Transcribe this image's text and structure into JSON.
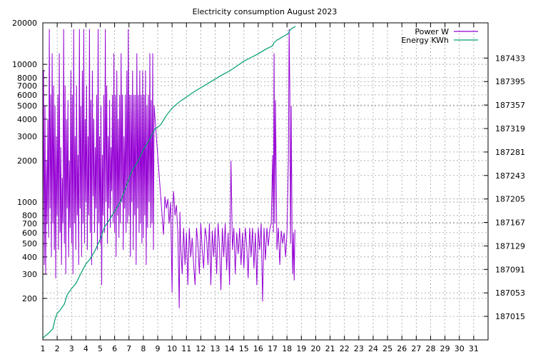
{
  "chart_data": {
    "type": "line",
    "title": "Electricity consumption August 2023",
    "xlabel": "",
    "ylabel": "",
    "y2label": "",
    "grid": true,
    "legend_position": "top-right",
    "x_range": [
      1,
      32
    ],
    "x_ticks": [
      1,
      2,
      3,
      4,
      5,
      6,
      7,
      8,
      9,
      10,
      11,
      12,
      13,
      14,
      15,
      16,
      17,
      18,
      19,
      20,
      21,
      22,
      23,
      24,
      25,
      26,
      27,
      28,
      29,
      30,
      31
    ],
    "y_scale": "log",
    "y_range": [
      100,
      20000
    ],
    "y_ticks": [
      200,
      300,
      400,
      500,
      600,
      700,
      800,
      1000,
      2000,
      3000,
      4000,
      5000,
      6000,
      7000,
      8000,
      10000,
      20000
    ],
    "y2_range": [
      186977,
      187490
    ],
    "y2_ticks": [
      187015,
      187053,
      187091,
      187129,
      187167,
      187205,
      187243,
      187281,
      187319,
      187357,
      187395,
      187433
    ],
    "series": [
      {
        "name": "Power W",
        "axis": "y",
        "color": "#9400d3",
        "style": "impulse",
        "points": [
          [
            1.0,
            600
          ],
          [
            1.05,
            9000
          ],
          [
            1.1,
            350
          ],
          [
            1.15,
            5000
          ],
          [
            1.2,
            300
          ],
          [
            1.25,
            2000
          ],
          [
            1.3,
            700
          ],
          [
            1.35,
            4000
          ],
          [
            1.4,
            550
          ],
          [
            1.45,
            18000
          ],
          [
            1.5,
            900
          ],
          [
            1.55,
            6000
          ],
          [
            1.6,
            400
          ],
          [
            1.65,
            12000
          ],
          [
            1.7,
            700
          ],
          [
            1.75,
            7000
          ],
          [
            1.8,
            450
          ],
          [
            1.85,
            5000
          ],
          [
            1.9,
            280
          ],
          [
            1.95,
            3000
          ],
          [
            2.0,
            800
          ],
          [
            2.05,
            6000
          ],
          [
            2.1,
            450
          ],
          [
            2.15,
            12000
          ],
          [
            2.2,
            600
          ],
          [
            2.25,
            2500
          ],
          [
            2.3,
            350
          ],
          [
            2.35,
            1500
          ],
          [
            2.4,
            700
          ],
          [
            2.45,
            18000
          ],
          [
            2.5,
            500
          ],
          [
            2.55,
            7000
          ],
          [
            2.6,
            300
          ],
          [
            2.65,
            4000
          ],
          [
            2.7,
            900
          ],
          [
            2.75,
            5500
          ],
          [
            2.8,
            400
          ],
          [
            2.85,
            2000
          ],
          [
            2.9,
            650
          ],
          [
            2.95,
            9000
          ],
          [
            3.0,
            500
          ],
          [
            3.05,
            6000
          ],
          [
            3.1,
            300
          ],
          [
            3.15,
            18000
          ],
          [
            3.2,
            700
          ],
          [
            3.25,
            3000
          ],
          [
            3.3,
            450
          ],
          [
            3.35,
            7000
          ],
          [
            3.4,
            800
          ],
          [
            3.45,
            2200
          ],
          [
            3.5,
            350
          ],
          [
            3.55,
            18000
          ],
          [
            3.6,
            900
          ],
          [
            3.65,
            5000
          ],
          [
            3.7,
            400
          ],
          [
            3.75,
            9000
          ],
          [
            3.8,
            700
          ],
          [
            3.85,
            18000
          ],
          [
            3.9,
            500
          ],
          [
            3.95,
            4000
          ],
          [
            4.0,
            1000
          ],
          [
            4.05,
            7000
          ],
          [
            4.1,
            450
          ],
          [
            4.15,
            3000
          ],
          [
            4.2,
            800
          ],
          [
            4.25,
            18000
          ],
          [
            4.3,
            600
          ],
          [
            4.35,
            5500
          ],
          [
            4.4,
            350
          ],
          [
            4.45,
            9000
          ],
          [
            4.5,
            1100
          ],
          [
            4.55,
            4000
          ],
          [
            4.6,
            600
          ],
          [
            4.65,
            2500
          ],
          [
            4.7,
            900
          ],
          [
            4.75,
            6000
          ],
          [
            4.8,
            450
          ],
          [
            4.85,
            18000
          ],
          [
            4.9,
            700
          ],
          [
            4.95,
            3000
          ],
          [
            5.0,
            500
          ],
          [
            5.05,
            5000
          ],
          [
            5.1,
            250
          ],
          [
            5.15,
            2200
          ],
          [
            5.2,
            800
          ],
          [
            5.25,
            6000
          ],
          [
            5.3,
            600
          ],
          [
            5.35,
            18000
          ],
          [
            5.4,
            1000
          ],
          [
            5.45,
            7000
          ],
          [
            5.5,
            500
          ],
          [
            5.55,
            3000
          ],
          [
            5.6,
            900
          ],
          [
            5.65,
            5500
          ],
          [
            5.7,
            650
          ],
          [
            5.75,
            2500
          ],
          [
            5.8,
            1200
          ],
          [
            5.85,
            6000
          ],
          [
            5.9,
            700
          ],
          [
            5.95,
            12000
          ],
          [
            6.0,
            600
          ],
          [
            6.05,
            6000
          ],
          [
            6.1,
            400
          ],
          [
            6.15,
            9000
          ],
          [
            6.2,
            800
          ],
          [
            6.25,
            4000
          ],
          [
            6.3,
            550
          ],
          [
            6.35,
            6000
          ],
          [
            6.4,
            700
          ],
          [
            6.45,
            12000
          ],
          [
            6.5,
            1000
          ],
          [
            6.55,
            6000
          ],
          [
            6.6,
            450
          ],
          [
            6.65,
            3000
          ],
          [
            6.7,
            900
          ],
          [
            6.75,
            6000
          ],
          [
            6.8,
            600
          ],
          [
            6.85,
            9000
          ],
          [
            6.9,
            700
          ],
          [
            6.95,
            18000
          ],
          [
            7.0,
            800
          ],
          [
            7.05,
            6000
          ],
          [
            7.1,
            400
          ],
          [
            7.15,
            6000
          ],
          [
            7.2,
            1000
          ],
          [
            7.25,
            9000
          ],
          [
            7.3,
            450
          ],
          [
            7.35,
            6000
          ],
          [
            7.4,
            800
          ],
          [
            7.45,
            6000
          ],
          [
            7.5,
            350
          ],
          [
            7.55,
            12000
          ],
          [
            7.6,
            900
          ],
          [
            7.65,
            6000
          ],
          [
            7.7,
            600
          ],
          [
            7.75,
            9000
          ],
          [
            7.8,
            700
          ],
          [
            7.85,
            6000
          ],
          [
            7.9,
            500
          ],
          [
            7.95,
            9000
          ],
          [
            8.0,
            550
          ],
          [
            8.05,
            6000
          ],
          [
            8.1,
            800
          ],
          [
            8.15,
            9000
          ],
          [
            8.2,
            350
          ],
          [
            8.25,
            5000
          ],
          [
            8.3,
            650
          ],
          [
            8.35,
            6000
          ],
          [
            8.4,
            1000
          ],
          [
            8.45,
            12000
          ],
          [
            8.5,
            650
          ],
          [
            8.55,
            5500
          ],
          [
            8.6,
            700
          ],
          [
            8.65,
            12000
          ],
          [
            8.7,
            450
          ],
          [
            8.75,
            5000
          ],
          [
            9.4,
            580
          ],
          [
            9.5,
            1100
          ],
          [
            9.6,
            900
          ],
          [
            9.7,
            1050
          ],
          [
            9.8,
            700
          ],
          [
            9.9,
            1000
          ],
          [
            10.0,
            220
          ],
          [
            10.05,
            900
          ],
          [
            10.1,
            1200
          ],
          [
            10.2,
            800
          ],
          [
            10.3,
            950
          ],
          [
            10.4,
            600
          ],
          [
            10.5,
            170
          ],
          [
            10.55,
            850
          ],
          [
            10.6,
            500
          ],
          [
            10.7,
            300
          ],
          [
            10.8,
            650
          ],
          [
            10.9,
            350
          ],
          [
            11.0,
            600
          ],
          [
            11.1,
            250
          ],
          [
            11.2,
            650
          ],
          [
            11.3,
            400
          ],
          [
            11.4,
            550
          ],
          [
            11.5,
            350
          ],
          [
            11.6,
            250
          ],
          [
            11.7,
            650
          ],
          [
            11.8,
            500
          ],
          [
            11.9,
            300
          ],
          [
            12.0,
            700
          ],
          [
            12.1,
            450
          ],
          [
            12.2,
            330
          ],
          [
            12.3,
            650
          ],
          [
            12.4,
            550
          ],
          [
            12.5,
            350
          ],
          [
            12.6,
            700
          ],
          [
            12.7,
            250
          ],
          [
            12.8,
            620
          ],
          [
            12.9,
            400
          ],
          [
            13.0,
            650
          ],
          [
            13.1,
            300
          ],
          [
            13.2,
            700
          ],
          [
            13.3,
            480
          ],
          [
            13.4,
            230
          ],
          [
            13.5,
            650
          ],
          [
            13.6,
            400
          ],
          [
            13.7,
            700
          ],
          [
            13.8,
            320
          ],
          [
            13.9,
            600
          ],
          [
            14.0,
            250
          ],
          [
            14.1,
            2000
          ],
          [
            14.2,
            450
          ],
          [
            14.3,
            650
          ],
          [
            14.4,
            300
          ],
          [
            14.5,
            600
          ],
          [
            14.6,
            420
          ],
          [
            14.7,
            650
          ],
          [
            14.8,
            350
          ],
          [
            14.9,
            600
          ],
          [
            15.0,
            330
          ],
          [
            15.1,
            650
          ],
          [
            15.2,
            480
          ],
          [
            15.3,
            280
          ],
          [
            15.4,
            650
          ],
          [
            15.5,
            400
          ],
          [
            15.6,
            650
          ],
          [
            15.7,
            330
          ],
          [
            15.8,
            600
          ],
          [
            15.9,
            250
          ],
          [
            16.0,
            650
          ],
          [
            16.1,
            450
          ],
          [
            16.2,
            700
          ],
          [
            16.3,
            190
          ],
          [
            16.4,
            650
          ],
          [
            16.5,
            380
          ],
          [
            16.6,
            650
          ],
          [
            16.7,
            480
          ],
          [
            16.8,
            630
          ],
          [
            16.9,
            700
          ],
          [
            17.0,
            2200
          ],
          [
            17.05,
            600
          ],
          [
            17.1,
            12000
          ],
          [
            17.15,
            700
          ],
          [
            17.2,
            5500
          ],
          [
            17.3,
            450
          ],
          [
            17.4,
            650
          ],
          [
            17.5,
            350
          ],
          [
            17.6,
            620
          ],
          [
            17.7,
            500
          ],
          [
            17.8,
            600
          ],
          [
            17.9,
            400
          ],
          [
            18.0,
            600
          ],
          [
            18.1,
            2000
          ],
          [
            18.15,
            18000
          ],
          [
            18.2,
            6000
          ],
          [
            18.25,
            500
          ],
          [
            18.3,
            5000
          ],
          [
            18.35,
            650
          ],
          [
            18.4,
            300
          ],
          [
            18.45,
            600
          ],
          [
            18.5,
            270
          ],
          [
            18.55,
            630
          ]
        ]
      },
      {
        "name": "Energy KWh",
        "axis": "y2",
        "color": "#009e73",
        "style": "line",
        "points": [
          [
            1.0,
            186980
          ],
          [
            1.4,
            186988
          ],
          [
            1.7,
            186995
          ],
          [
            1.85,
            187010
          ],
          [
            2.0,
            187020
          ],
          [
            2.2,
            187025
          ],
          [
            2.5,
            187035
          ],
          [
            2.7,
            187050
          ],
          [
            3.0,
            187060
          ],
          [
            3.3,
            187068
          ],
          [
            3.6,
            187082
          ],
          [
            4.0,
            187100
          ],
          [
            4.3,
            187108
          ],
          [
            4.6,
            187120
          ],
          [
            5.0,
            187140
          ],
          [
            5.3,
            187160
          ],
          [
            5.6,
            187170
          ],
          [
            6.0,
            187185
          ],
          [
            6.4,
            187200
          ],
          [
            6.8,
            187225
          ],
          [
            7.2,
            187250
          ],
          [
            7.6,
            187265
          ],
          [
            8.0,
            187285
          ],
          [
            8.4,
            187300
          ],
          [
            8.8,
            187318
          ],
          [
            9.2,
            187325
          ],
          [
            9.6,
            187340
          ],
          [
            10.0,
            187352
          ],
          [
            10.5,
            187362
          ],
          [
            11.0,
            187370
          ],
          [
            11.5,
            187378
          ],
          [
            12.0,
            187385
          ],
          [
            12.5,
            187392
          ],
          [
            13.0,
            187399
          ],
          [
            13.5,
            187406
          ],
          [
            14.0,
            187412
          ],
          [
            14.5,
            187420
          ],
          [
            15.0,
            187428
          ],
          [
            15.5,
            187434
          ],
          [
            16.0,
            187440
          ],
          [
            16.5,
            187447
          ],
          [
            17.0,
            187453
          ],
          [
            17.1,
            187458
          ],
          [
            17.3,
            187462
          ],
          [
            17.6,
            187466
          ],
          [
            17.9,
            187470
          ],
          [
            18.1,
            187473
          ],
          [
            18.2,
            187478
          ],
          [
            18.4,
            187482
          ],
          [
            18.6,
            187484
          ]
        ]
      }
    ]
  }
}
